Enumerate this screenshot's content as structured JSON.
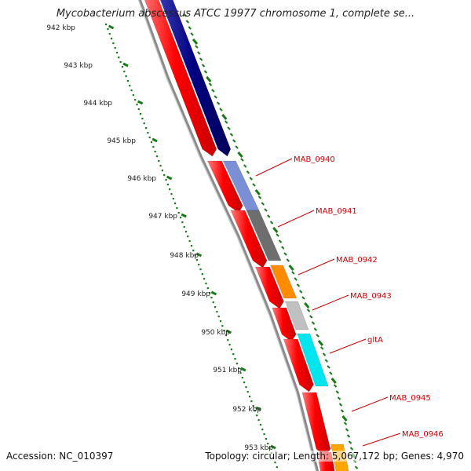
{
  "title": "Mycobacterium abscessus ATCC 19977 chromosome 1, complete se...",
  "kbp_labels": [
    "942 kbp",
    "943 kbp",
    "944 kbp",
    "945 kbp",
    "946 kbp",
    "947 kbp",
    "948 kbp",
    "949 kbp",
    "950 kbp",
    "951 kbp",
    "952 kbp",
    "953 kbp"
  ],
  "gene_labels": [
    "MAB_0940",
    "MAB_0941",
    "MAB_0942",
    "MAB_0943",
    "gltA",
    "MAB_0945",
    "MAB_0946"
  ],
  "colors": {
    "forward_gene": "#ff0000",
    "navy_gene": "#000080",
    "backbone": "#8a8a8a",
    "kbp_ruler": "#1a7a1a",
    "label_text": "#cc0000",
    "MAB_0940": "#7a8fd6",
    "MAB_0941": "#6e6e6e",
    "MAB_0942": "#ff8c00",
    "MAB_0943": "#c0c0c0",
    "gltA": "#00e5ee",
    "MAB_0946": "#ffa500"
  },
  "footer": {
    "accession": "Accession: NC_010397",
    "topology": "Topology: circular; Length: 5,067,172 bp; Genes: 4,970"
  }
}
